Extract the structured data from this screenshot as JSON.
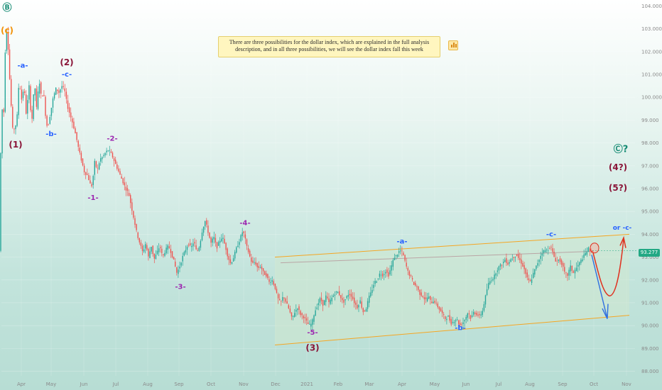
{
  "colors": {
    "up": "#26a69a",
    "down": "#ef5350",
    "channel": "#f5a623",
    "midline": "#b9a5a5",
    "wave_green": "#138a72",
    "wave_orange": "#f29208",
    "wave_maroon": "#8a1538",
    "wave_blue": "#2962ff",
    "wave_purple": "#9c27b0",
    "red_path": "#e0301e",
    "blue_arrow": "#2f6fe0"
  },
  "note": {
    "text": "There are three possibilities for the dollar index, which are explained in the full analysis description, and in all three possibilities, we will see the dollar index fall this week",
    "icon": "bar-chart-icon"
  },
  "last_price": "93.277",
  "chart_data": {
    "type": "candlestick",
    "x_ticks": [
      "Apr",
      "May",
      "Jun",
      "Jul",
      "Aug",
      "Sep",
      "Oct",
      "Nov",
      "Dec",
      "2021",
      "Feb",
      "Mar",
      "Apr",
      "May",
      "Jun",
      "Jul",
      "Aug",
      "Sep",
      "Oct",
      "Nov"
    ],
    "y_ticks": [
      "104.000",
      "103.000",
      "102.000",
      "101.000",
      "100.000",
      "99.000",
      "98.000",
      "97.000",
      "96.000",
      "95.000",
      "94.000",
      "93.000",
      "92.000",
      "91.000",
      "90.000",
      "89.000",
      "88.000"
    ],
    "ylim": [
      87.8,
      104.2
    ],
    "price_path": [
      [
        0,
        96.2
      ],
      [
        2,
        97.5
      ],
      [
        4,
        99.5
      ],
      [
        6,
        99.0
      ],
      [
        8,
        101.8
      ],
      [
        10,
        103.0
      ],
      [
        12,
        102.5
      ],
      [
        14,
        101.2
      ],
      [
        16,
        100.0
      ],
      [
        18,
        99.0
      ],
      [
        20,
        98.1
      ],
      [
        22,
        99.2
      ],
      [
        24,
        98.4
      ],
      [
        26,
        99.8
      ],
      [
        28,
        100.8
      ],
      [
        30,
        100.2
      ],
      [
        32,
        99.8
      ],
      [
        34,
        100.4
      ],
      [
        36,
        100.1
      ],
      [
        38,
        99.2
      ],
      [
        40,
        99.9
      ],
      [
        42,
        100.5
      ],
      [
        44,
        99.5
      ],
      [
        46,
        99.0
      ],
      [
        48,
        100.0
      ],
      [
        50,
        100.6
      ],
      [
        52,
        99.4
      ],
      [
        54,
        100.0
      ],
      [
        56,
        100.8
      ],
      [
        58,
        100.3
      ],
      [
        60,
        99.8
      ],
      [
        62,
        100.5
      ],
      [
        64,
        99.5
      ],
      [
        66,
        99.0
      ],
      [
        68,
        98.6
      ],
      [
        72,
        99.3
      ],
      [
        76,
        100.0
      ],
      [
        80,
        100.4
      ],
      [
        84,
        100.2
      ],
      [
        88,
        100.5
      ],
      [
        92,
        100.3
      ],
      [
        96,
        99.6
      ],
      [
        100,
        99.2
      ],
      [
        104,
        98.8
      ],
      [
        108,
        98.3
      ],
      [
        112,
        97.7
      ],
      [
        116,
        97.2
      ],
      [
        120,
        96.7
      ],
      [
        124,
        96.6
      ],
      [
        128,
        96.2
      ],
      [
        131,
        96.1
      ],
      [
        134,
        97.2
      ],
      [
        138,
        96.8
      ],
      [
        142,
        97.3
      ],
      [
        146,
        97.4
      ],
      [
        150,
        97.6
      ],
      [
        154,
        97.7
      ],
      [
        158,
        97.5
      ],
      [
        162,
        97.2
      ],
      [
        166,
        96.9
      ],
      [
        170,
        96.6
      ],
      [
        174,
        96.3
      ],
      [
        178,
        96.0
      ],
      [
        182,
        95.8
      ],
      [
        186,
        95.2
      ],
      [
        190,
        94.6
      ],
      [
        194,
        94.0
      ],
      [
        198,
        93.6
      ],
      [
        202,
        93.2
      ],
      [
        206,
        93.6
      ],
      [
        210,
        93.0
      ],
      [
        214,
        93.5
      ],
      [
        218,
        92.9
      ],
      [
        222,
        93.2
      ],
      [
        226,
        93.5
      ],
      [
        230,
        93.0
      ],
      [
        234,
        93.3
      ],
      [
        238,
        93.5
      ],
      [
        242,
        93.2
      ],
      [
        246,
        92.8
      ],
      [
        250,
        92.3
      ],
      [
        254,
        92.6
      ],
      [
        258,
        93.0
      ],
      [
        262,
        93.3
      ],
      [
        266,
        93.6
      ],
      [
        270,
        93.4
      ],
      [
        274,
        93.7
      ],
      [
        278,
        93.2
      ],
      [
        282,
        93.5
      ],
      [
        286,
        94.2
      ],
      [
        290,
        94.6
      ],
      [
        294,
        94.1
      ],
      [
        298,
        93.6
      ],
      [
        302,
        93.9
      ],
      [
        306,
        93.4
      ],
      [
        310,
        93.7
      ],
      [
        314,
        93.9
      ],
      [
        318,
        93.5
      ],
      [
        322,
        93.0
      ],
      [
        326,
        92.7
      ],
      [
        330,
        93.0
      ],
      [
        334,
        93.4
      ],
      [
        338,
        93.7
      ],
      [
        342,
        94.1
      ],
      [
        345,
        94.0
      ],
      [
        348,
        93.5
      ],
      [
        352,
        93.1
      ],
      [
        356,
        92.7
      ],
      [
        360,
        92.8
      ],
      [
        364,
        92.5
      ],
      [
        368,
        92.6
      ],
      [
        372,
        92.3
      ],
      [
        376,
        92.2
      ],
      [
        380,
        91.9
      ],
      [
        384,
        92.0
      ],
      [
        388,
        91.7
      ],
      [
        392,
        91.2
      ],
      [
        396,
        91.0
      ],
      [
        400,
        91.3
      ],
      [
        404,
        91.0
      ],
      [
        408,
        90.7
      ],
      [
        412,
        90.3
      ],
      [
        416,
        90.6
      ],
      [
        420,
        90.8
      ],
      [
        424,
        90.5
      ],
      [
        428,
        90.4
      ],
      [
        432,
        90.2
      ],
      [
        436,
        90.0
      ],
      [
        440,
        90.1
      ],
      [
        444,
        90.6
      ],
      [
        448,
        90.9
      ],
      [
        452,
        91.2
      ],
      [
        456,
        90.9
      ],
      [
        460,
        91.3
      ],
      [
        464,
        91.0
      ],
      [
        468,
        91.2
      ],
      [
        472,
        91.4
      ],
      [
        476,
        91.5
      ],
      [
        480,
        91.3
      ],
      [
        484,
        91.0
      ],
      [
        488,
        91.2
      ],
      [
        492,
        91.4
      ],
      [
        496,
        91.3
      ],
      [
        500,
        91.0
      ],
      [
        504,
        90.8
      ],
      [
        508,
        91.1
      ],
      [
        512,
        90.6
      ],
      [
        516,
        90.7
      ],
      [
        520,
        91.2
      ],
      [
        524,
        91.5
      ],
      [
        528,
        91.9
      ],
      [
        532,
        92.0
      ],
      [
        536,
        92.3
      ],
      [
        540,
        92.2
      ],
      [
        544,
        92.4
      ],
      [
        548,
        92.2
      ],
      [
        552,
        92.6
      ],
      [
        556,
        93.0
      ],
      [
        560,
        93.1
      ],
      [
        564,
        93.3
      ],
      [
        568,
        93.2
      ],
      [
        572,
        92.7
      ],
      [
        576,
        92.3
      ],
      [
        580,
        92.1
      ],
      [
        584,
        91.8
      ],
      [
        588,
        91.7
      ],
      [
        592,
        91.4
      ],
      [
        596,
        91.3
      ],
      [
        600,
        91.1
      ],
      [
        604,
        91.3
      ],
      [
        608,
        91.0
      ],
      [
        612,
        91.1
      ],
      [
        616,
        90.9
      ],
      [
        620,
        90.7
      ],
      [
        624,
        90.5
      ],
      [
        628,
        90.3
      ],
      [
        632,
        90.4
      ],
      [
        636,
        90.1
      ],
      [
        640,
        90.2
      ],
      [
        644,
        90.3
      ],
      [
        648,
        90.0
      ],
      [
        652,
        90.1
      ],
      [
        656,
        90.3
      ],
      [
        660,
        90.6
      ],
      [
        664,
        90.3
      ],
      [
        668,
        90.6
      ],
      [
        672,
        90.5
      ],
      [
        676,
        90.4
      ],
      [
        680,
        90.6
      ],
      [
        684,
        91.2
      ],
      [
        688,
        91.8
      ],
      [
        692,
        92.0
      ],
      [
        696,
        92.1
      ],
      [
        700,
        92.4
      ],
      [
        704,
        92.6
      ],
      [
        708,
        92.7
      ],
      [
        712,
        92.9
      ],
      [
        716,
        92.7
      ],
      [
        720,
        92.9
      ],
      [
        724,
        93.0
      ],
      [
        728,
        93.1
      ],
      [
        732,
        92.9
      ],
      [
        736,
        92.7
      ],
      [
        740,
        92.4
      ],
      [
        744,
        92.0
      ],
      [
        748,
        91.9
      ],
      [
        752,
        92.3
      ],
      [
        756,
        92.6
      ],
      [
        760,
        92.9
      ],
      [
        764,
        93.2
      ],
      [
        768,
        93.3
      ],
      [
        772,
        93.3
      ],
      [
        776,
        93.5
      ],
      [
        780,
        93.1
      ],
      [
        784,
        92.8
      ],
      [
        788,
        92.9
      ],
      [
        792,
        92.7
      ],
      [
        796,
        92.3
      ],
      [
        800,
        92.2
      ],
      [
        804,
        92.6
      ],
      [
        808,
        92.3
      ],
      [
        812,
        92.5
      ],
      [
        816,
        92.7
      ],
      [
        820,
        92.9
      ],
      [
        824,
        93.1
      ],
      [
        828,
        93.3
      ],
      [
        830,
        93.4
      ],
      [
        832,
        93.2
      ],
      [
        834,
        93.277
      ]
    ],
    "annotations": [
      {
        "text": "Ⓑ",
        "color": "wave_green",
        "at": [
          10,
          103.8
        ],
        "size": 13
      },
      {
        "text": "(c)",
        "color": "wave_orange",
        "at": [
          10,
          102.8
        ],
        "size": 12
      },
      {
        "text": "(1)",
        "color": "wave_maroon",
        "at": [
          22,
          97.8
        ],
        "size": 12
      },
      {
        "text": "-a-",
        "color": "wave_blue",
        "at": [
          32,
          101.3
        ],
        "size": 10
      },
      {
        "text": "-b-",
        "color": "wave_blue",
        "at": [
          72,
          98.3
        ],
        "size": 10
      },
      {
        "text": "(2)",
        "color": "wave_maroon",
        "at": [
          94,
          101.4
        ],
        "size": 12
      },
      {
        "text": "-c-",
        "color": "wave_blue",
        "at": [
          94,
          100.9
        ],
        "size": 10
      },
      {
        "text": "-2-",
        "color": "wave_purple",
        "at": [
          158,
          98.1
        ],
        "size": 10
      },
      {
        "text": "-1-",
        "color": "wave_purple",
        "at": [
          131,
          95.5
        ],
        "size": 10
      },
      {
        "text": "-3-",
        "color": "wave_purple",
        "at": [
          254,
          91.6
        ],
        "size": 10
      },
      {
        "text": "-4-",
        "color": "wave_purple",
        "at": [
          345,
          94.4
        ],
        "size": 10
      },
      {
        "text": "-5-",
        "color": "wave_purple",
        "at": [
          440,
          89.6
        ],
        "size": 10
      },
      {
        "text": "(3)",
        "color": "wave_maroon",
        "at": [
          440,
          88.9
        ],
        "size": 12
      },
      {
        "text": "-a-",
        "color": "wave_blue",
        "at": [
          566,
          93.6
        ],
        "size": 10
      },
      {
        "text": "-b-",
        "color": "wave_blue",
        "at": [
          648,
          89.8
        ],
        "size": 10
      },
      {
        "text": "-c-",
        "color": "wave_blue",
        "at": [
          776,
          93.9
        ],
        "size": 10
      },
      {
        "text": "or -c-",
        "color": "wave_blue",
        "at": [
          876,
          94.2
        ],
        "size": 9
      },
      {
        "text": "Ⓒ?",
        "color": "wave_green",
        "at": [
          874,
          97.6
        ],
        "size": 13
      },
      {
        "text": "(4?)",
        "color": "wave_maroon",
        "at": [
          870,
          96.8
        ],
        "size": 12
      },
      {
        "text": "(5?)",
        "color": "wave_maroon",
        "at": [
          870,
          95.9
        ],
        "size": 12
      }
    ]
  }
}
